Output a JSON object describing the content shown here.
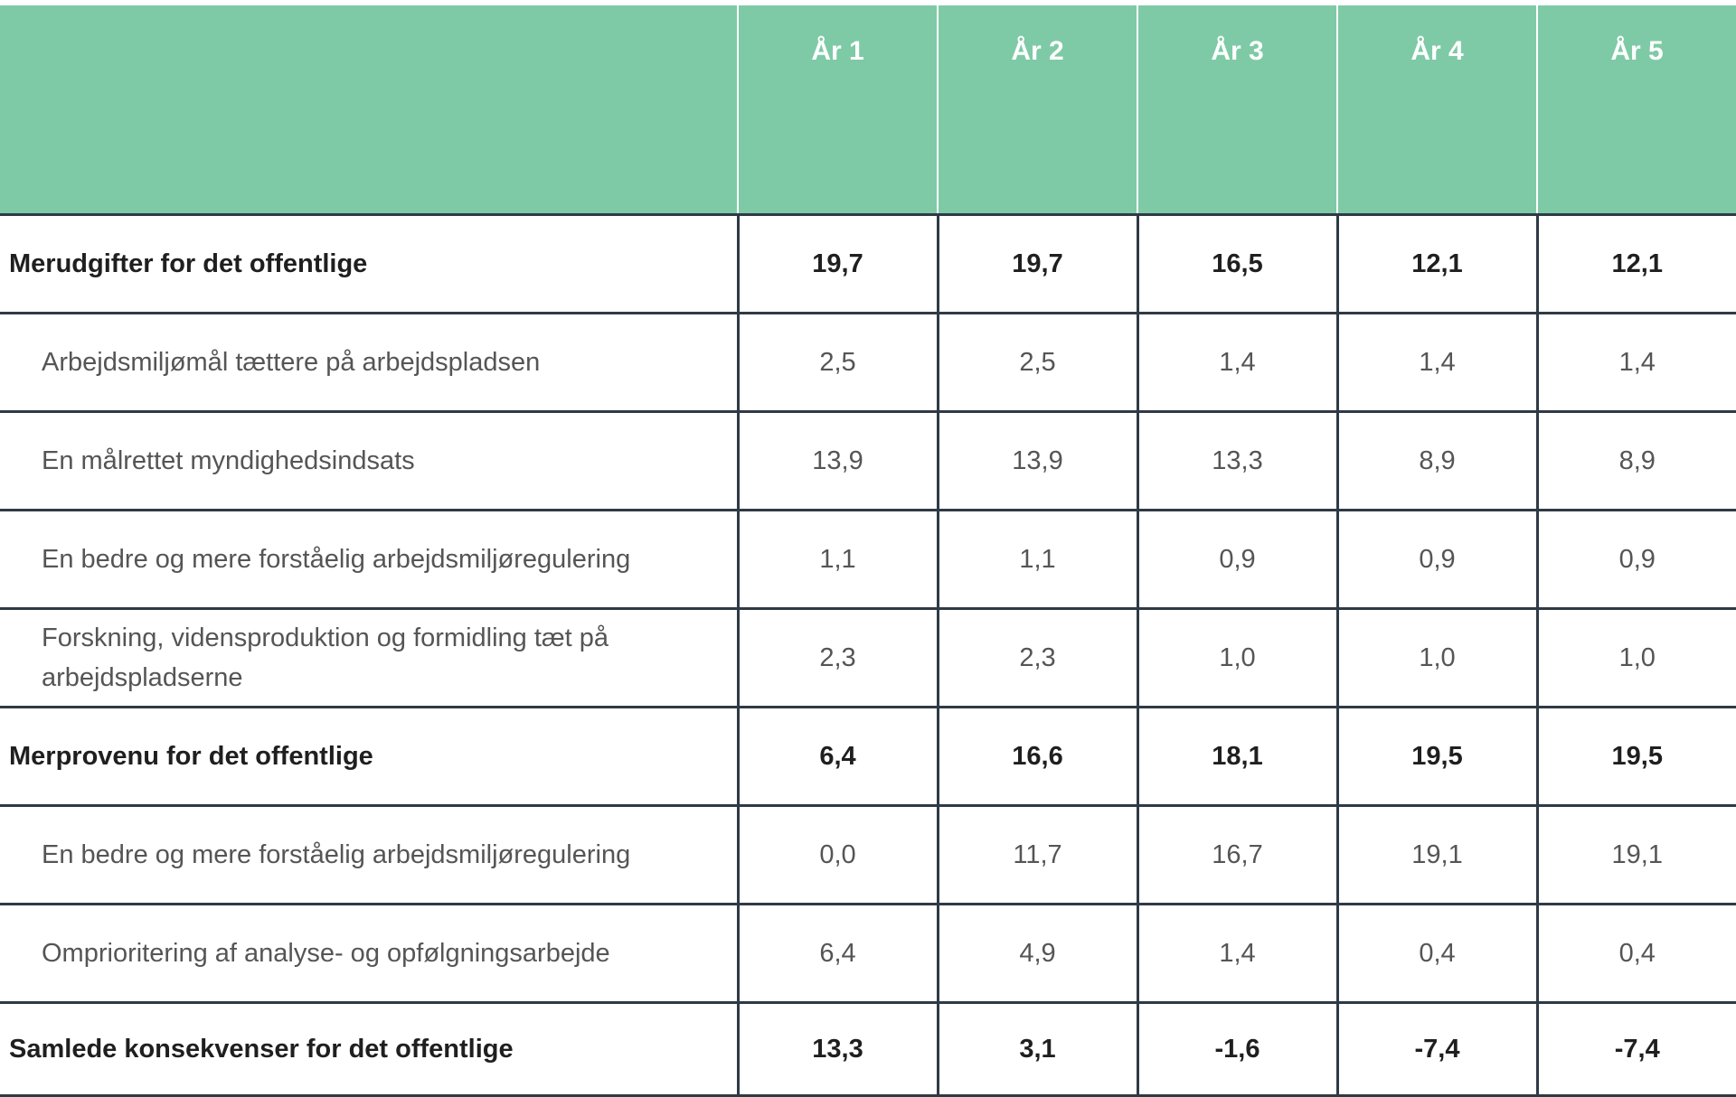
{
  "table": {
    "columns": [
      "",
      "År 1",
      "År 2",
      "År 3",
      "År 4",
      "År 5"
    ],
    "rows": [
      {
        "label": "Merudgifter for det offentlige",
        "values": [
          "19,7",
          "19,7",
          "16,5",
          "12,1",
          "12,1"
        ],
        "bold": true
      },
      {
        "label": "Arbejdsmiljømål tættere på arbejdspladsen",
        "values": [
          "2,5",
          "2,5",
          "1,4",
          "1,4",
          "1,4"
        ],
        "bold": false
      },
      {
        "label": "En målrettet myndighedsindsats",
        "values": [
          "13,9",
          "13,9",
          "13,3",
          "8,9",
          "8,9"
        ],
        "bold": false
      },
      {
        "label": "En bedre og mere forståelig arbejdsmiljøregulering",
        "values": [
          "1,1",
          "1,1",
          "0,9",
          "0,9",
          "0,9"
        ],
        "bold": false
      },
      {
        "label": "Forskning, vidensproduktion og formidling tæt på arbejdspladserne",
        "values": [
          "2,3",
          "2,3",
          "1,0",
          "1,0",
          "1,0"
        ],
        "bold": false
      },
      {
        "label": "Merprovenu for det offentlige",
        "values": [
          "6,4",
          "16,6",
          "18,1",
          "19,5",
          "19,5"
        ],
        "bold": true
      },
      {
        "label": "En bedre og mere forståelig arbejdsmiljøregulering",
        "values": [
          "0,0",
          "11,7",
          "16,7",
          "19,1",
          "19,1"
        ],
        "bold": false
      },
      {
        "label": "Omprioritering af analyse- og opfølgningsarbejde",
        "values": [
          "6,4",
          "4,9",
          "1,4",
          "0,4",
          "0,4"
        ],
        "bold": false
      },
      {
        "label": "Samlede konsekvenser for det offentlige",
        "values": [
          "13,3",
          "3,1",
          "-1,6",
          "-7,4",
          "-7,4"
        ],
        "bold": true
      }
    ]
  },
  "colors": {
    "header_bg": "#7ecaa6",
    "header_text": "#ffffff",
    "border": "#2f3a45"
  }
}
